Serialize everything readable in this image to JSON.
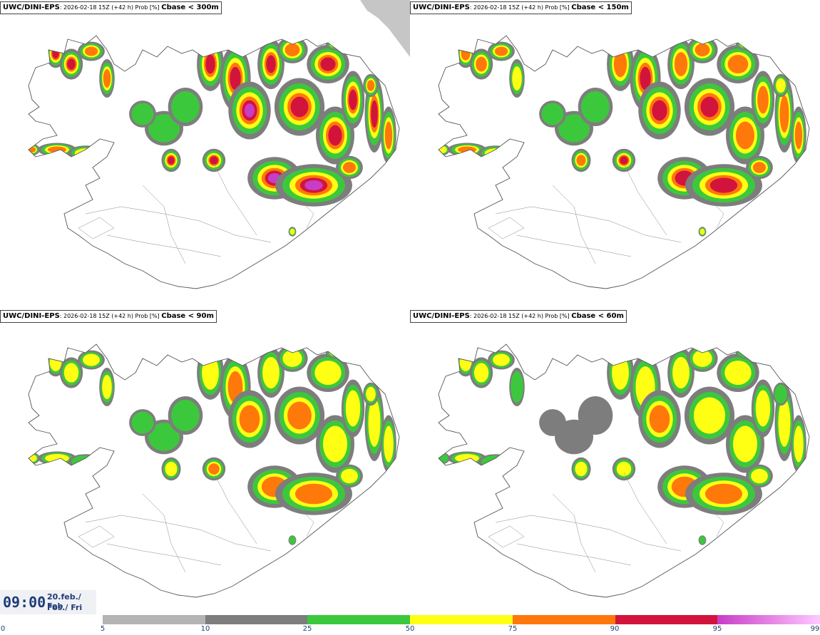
{
  "panels": [
    {
      "model": "UWC/DINI-EPS",
      "meta": ": 2026-02-18 15Z (+42 h) Prob [%] ",
      "threshold": "Cbase < 300m",
      "intensity": 1.0
    },
    {
      "model": "UWC/DINI-EPS",
      "meta": ": 2026-02-18 15Z (+42 h) Prob [%] ",
      "threshold": "Cbase < 150m",
      "intensity": 0.85
    },
    {
      "model": "UWC/DINI-EPS",
      "meta": ": 2026-02-18 15Z (+42 h) Prob [%] ",
      "threshold": "Cbase < 90m",
      "intensity": 0.7
    },
    {
      "model": "UWC/DINI-EPS",
      "meta": ": 2026-02-18 15Z (+42 h) Prob [%] ",
      "threshold": "Cbase < 60m",
      "intensity": 0.6
    }
  ],
  "time": {
    "clock": "09:00",
    "date_line1": "20.feb./ Feb",
    "date_line2": "Fös./ Fri"
  },
  "colorbar": {
    "ticks": [
      "0",
      "5",
      "10",
      "25",
      "50",
      "75",
      "90",
      "95",
      "99"
    ],
    "colors": [
      "#b4b4b4",
      "#7d7d7d",
      "#3cc83c",
      "#ffff14",
      "#ff780a",
      "#d2143c",
      "#c83cc8"
    ],
    "last_gradient_to": "#ffc8ff"
  }
}
